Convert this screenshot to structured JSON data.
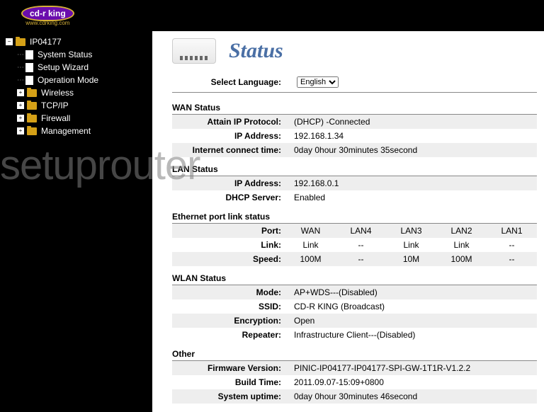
{
  "logo": {
    "text": "cd-r king",
    "sub": "www.cdrking.com"
  },
  "watermark": "setuprouter",
  "sidebar": {
    "root": "IP04177",
    "items": [
      {
        "label": "System Status",
        "icon": "doc",
        "expand": null
      },
      {
        "label": "Setup Wizard",
        "icon": "doc",
        "expand": null
      },
      {
        "label": "Operation Mode",
        "icon": "doc",
        "expand": null
      },
      {
        "label": "Wireless",
        "icon": "folder",
        "expand": "+"
      },
      {
        "label": "TCP/IP",
        "icon": "folder",
        "expand": "+"
      },
      {
        "label": "Firewall",
        "icon": "folder",
        "expand": "+"
      },
      {
        "label": "Management",
        "icon": "folder",
        "expand": "+"
      }
    ]
  },
  "page": {
    "title": "Status",
    "lang_label": "Select Language:",
    "lang_value": "English"
  },
  "wan": {
    "heading": "WAN Status",
    "rows": [
      {
        "label": "Attain IP Protocol:",
        "value": "(DHCP) -Connected"
      },
      {
        "label": "IP Address:",
        "value": "192.168.1.34"
      },
      {
        "label": "Internet connect time:",
        "value": "0day 0hour 30minutes 35second"
      }
    ]
  },
  "lan": {
    "heading": "LAN Status",
    "rows": [
      {
        "label": "IP Address:",
        "value": "192.168.0.1"
      },
      {
        "label": "DHCP Server:",
        "value": "Enabled"
      }
    ]
  },
  "eth": {
    "heading": "Ethernet port link status",
    "cols": [
      "WAN",
      "LAN4",
      "LAN3",
      "LAN2",
      "LAN1"
    ],
    "rows": [
      {
        "label": "Port:",
        "cells": [
          "WAN",
          "LAN4",
          "LAN3",
          "LAN2",
          "LAN1"
        ]
      },
      {
        "label": "Link:",
        "cells": [
          "Link",
          "--",
          "Link",
          "Link",
          "--"
        ]
      },
      {
        "label": "Speed:",
        "cells": [
          "100M",
          "--",
          "10M",
          "100M",
          "--"
        ]
      }
    ]
  },
  "wlan": {
    "heading": "WLAN Status",
    "rows": [
      {
        "label": "Mode:",
        "value": "AP+WDS---(Disabled)"
      },
      {
        "label": "SSID:",
        "value": "CD-R KING   (Broadcast)"
      },
      {
        "label": "Encryption:",
        "value": "Open"
      },
      {
        "label": "Repeater:",
        "value": "Infrastructure Client---(Disabled)"
      }
    ]
  },
  "other": {
    "heading": "Other",
    "rows": [
      {
        "label": "Firmware Version:",
        "value": "PINIC-IP04177-IP04177-SPI-GW-1T1R-V1.2.2"
      },
      {
        "label": "Build Time:",
        "value": "2011.09.07-15:09+0800"
      },
      {
        "label": "System uptime:",
        "value": "0day 0hour 30minutes 46second"
      }
    ]
  }
}
